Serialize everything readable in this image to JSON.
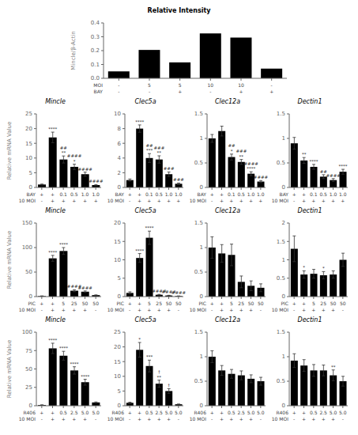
{
  "chart_data": [
    {
      "type": "bar",
      "title": "Relative Intensity",
      "ylabel": "Mincle/β-Actin",
      "category_rows": [
        {
          "name": "MOI",
          "labels": [
            "-",
            "5",
            "5",
            "10",
            "10",
            "-"
          ]
        },
        {
          "name": "BAY",
          "labels": [
            "-",
            "-",
            "+",
            "-",
            "+",
            "+"
          ]
        }
      ],
      "values": [
        0.05,
        0.205,
        0.115,
        0.325,
        0.295,
        0.07
      ],
      "ylim": [
        0,
        0.4
      ],
      "yticks": [
        {
          "value": 0,
          "label": "0.0"
        },
        0.1,
        0.2,
        0.3,
        0.4
      ]
    },
    {
      "type": "bar",
      "title": "Mincle",
      "ylabel": "Relative mRNA Value",
      "category_rows": [
        {
          "name": "BAY",
          "labels": [
            "+",
            "+",
            "0.1",
            "0.5",
            "1.0",
            "1.0"
          ]
        },
        {
          "name": "10 MOI",
          "labels": [
            "-",
            "+",
            "+",
            "+",
            "+",
            "+"
          ]
        }
      ],
      "values": [
        1.0,
        17.0,
        9.5,
        7.0,
        4.5,
        0.8
      ],
      "errors": [
        0.15,
        1.8,
        1.2,
        0.9,
        0.7,
        0.15
      ],
      "annotations": [
        null,
        [
          "****"
        ],
        [
          "##",
          "**"
        ],
        [
          "####",
          "*"
        ],
        [
          "####"
        ],
        [
          "####"
        ]
      ],
      "ylim": [
        0,
        25
      ],
      "yticks": [
        0,
        5,
        10,
        15,
        20,
        25
      ]
    },
    {
      "type": "bar",
      "title": "Clec5a",
      "category_rows": [
        {
          "name": "BAY",
          "labels": [
            "+",
            "+",
            "0.1",
            "0.5",
            "1.0",
            "1.0"
          ]
        },
        {
          "name": "10 MOI",
          "labels": [
            "-",
            "+",
            "+",
            "+",
            "+",
            "+"
          ]
        }
      ],
      "values": [
        1.0,
        8.0,
        4.0,
        3.8,
        1.8,
        0.5
      ],
      "errors": [
        0.15,
        0.5,
        0.6,
        0.5,
        0.3,
        0.1
      ],
      "annotations": [
        null,
        [
          "****"
        ],
        [
          "##",
          "***"
        ],
        [
          "###",
          "**"
        ],
        [
          "###"
        ],
        [
          "###"
        ]
      ],
      "ylim": [
        0,
        10
      ],
      "yticks": [
        0,
        2,
        4,
        6,
        8,
        10
      ]
    },
    {
      "type": "bar",
      "title": "Clec12a",
      "category_rows": [
        {
          "name": "BAY",
          "labels": [
            "+",
            "+",
            "0.1",
            "0.5",
            "1.0",
            "1.0"
          ]
        },
        {
          "name": "10 MOI",
          "labels": [
            "-",
            "+",
            "+",
            "+",
            "+",
            "+"
          ]
        }
      ],
      "values": [
        1.0,
        1.15,
        0.62,
        0.52,
        0.28,
        0.12
      ],
      "errors": [
        0.08,
        0.1,
        0.06,
        0.05,
        0.04,
        0.02
      ],
      "annotations": [
        null,
        null,
        [
          "##",
          "*"
        ],
        [
          "###",
          "**"
        ],
        [
          "####",
          "****"
        ],
        [
          "####"
        ]
      ],
      "ylim": [
        0,
        1.5
      ],
      "yticks": [
        0,
        0.5,
        1,
        1.5
      ]
    },
    {
      "type": "bar",
      "title": "Dectin1",
      "category_rows": [
        {
          "name": "BAY",
          "labels": [
            "+",
            "+",
            "0.1",
            "0.5",
            "1.0",
            "1.0"
          ]
        },
        {
          "name": "10 MOI",
          "labels": [
            "-",
            "+",
            "+",
            "+",
            "+",
            "+"
          ]
        }
      ],
      "values": [
        0.9,
        0.55,
        0.42,
        0.22,
        0.15,
        0.32
      ],
      "errors": [
        0.12,
        0.06,
        0.05,
        0.04,
        0.03,
        0.05
      ],
      "annotations": [
        null,
        [
          "**"
        ],
        [
          "****"
        ],
        [
          "##"
        ],
        [
          "####"
        ],
        [
          "****"
        ]
      ],
      "ylim": [
        0,
        1.5
      ],
      "yticks": [
        0,
        0.5,
        1,
        1.5
      ]
    },
    {
      "type": "bar",
      "title": "Mincle",
      "ylabel": "Relative mRNA Value",
      "category_rows": [
        {
          "name": "PIC",
          "labels": [
            "+",
            "+",
            "5",
            "25",
            "50",
            "50"
          ]
        },
        {
          "name": "10 MOI",
          "labels": [
            "-",
            "+",
            "+",
            "+",
            "+",
            "-"
          ]
        }
      ],
      "values": [
        1.0,
        78.0,
        93.0,
        12.0,
        10.0,
        3.0
      ],
      "errors": [
        0.5,
        6.0,
        7.0,
        2.0,
        1.5,
        0.5
      ],
      "annotations": [
        null,
        [
          "****"
        ],
        [
          "****"
        ],
        [
          "####"
        ],
        [
          "####"
        ],
        null
      ],
      "ylim": [
        0,
        150
      ],
      "yticks": [
        0,
        50,
        100,
        150
      ]
    },
    {
      "type": "bar",
      "title": "Clec5a",
      "category_rows": [
        {
          "name": "PIC",
          "labels": [
            "+",
            "+",
            "5",
            "25",
            "50",
            "50"
          ]
        },
        {
          "name": "10 MOI",
          "labels": [
            "-",
            "+",
            "+",
            "+",
            "+",
            "-"
          ]
        }
      ],
      "values": [
        1.0,
        10.5,
        16.0,
        0.5,
        0.3,
        0.15
      ],
      "errors": [
        0.3,
        1.2,
        1.8,
        0.1,
        0.05,
        0.03
      ],
      "annotations": [
        null,
        [
          "****"
        ],
        [
          "****"
        ],
        [
          "####"
        ],
        [
          "####"
        ],
        [
          "####"
        ]
      ],
      "ylim": [
        0,
        20
      ],
      "yticks": [
        0,
        5,
        10,
        15,
        20
      ]
    },
    {
      "type": "bar",
      "title": "Clec12a",
      "category_rows": [
        {
          "name": "PIC",
          "labels": [
            "+",
            "+",
            "5",
            "25",
            "50",
            "50"
          ]
        },
        {
          "name": "10 MOI",
          "labels": [
            "-",
            "+",
            "+",
            "+",
            "+",
            "-"
          ]
        }
      ],
      "values": [
        1.0,
        0.88,
        0.85,
        0.3,
        0.22,
        0.18
      ],
      "errors": [
        0.22,
        0.18,
        0.22,
        0.12,
        0.1,
        0.08
      ],
      "ylim": [
        0,
        1.5
      ],
      "yticks": [
        0,
        0.5,
        1,
        1.5
      ]
    },
    {
      "type": "bar",
      "title": "Dectin1",
      "category_rows": [
        {
          "name": "PIC",
          "labels": [
            "+",
            "+",
            "5",
            "25",
            "50",
            "50"
          ]
        },
        {
          "name": "10 MOI",
          "labels": [
            "-",
            "+",
            "+",
            "+",
            "+",
            "-"
          ]
        }
      ],
      "values": [
        1.3,
        0.6,
        0.62,
        0.58,
        0.6,
        1.0
      ],
      "errors": [
        0.35,
        0.1,
        0.12,
        0.1,
        0.1,
        0.18
      ],
      "annotations": [
        null,
        [
          "*"
        ],
        null,
        [
          "*"
        ],
        null,
        null
      ],
      "ylim": [
        0,
        2
      ],
      "yticks": [
        0,
        0.5,
        1,
        1.5,
        2
      ]
    },
    {
      "type": "bar",
      "title": "Mincle",
      "ylabel": "Relative mRNA Value",
      "category_rows": [
        {
          "name": "R406",
          "labels": [
            "+",
            "+",
            "0.5",
            "2.5",
            "5.0",
            "5.0"
          ]
        },
        {
          "name": "10 MOI",
          "labels": [
            "-",
            "+",
            "+",
            "+",
            "+",
            "-"
          ]
        }
      ],
      "values": [
        1.0,
        78.0,
        68.0,
        48.0,
        32.0,
        4.5
      ],
      "errors": [
        0.2,
        7.0,
        6.0,
        5.0,
        4.0,
        0.6
      ],
      "annotations": [
        null,
        [
          "****"
        ],
        [
          "****"
        ],
        [
          "****"
        ],
        [
          "****"
        ],
        null
      ],
      "ylim": [
        0,
        100
      ],
      "yticks": [
        0,
        25,
        50,
        75,
        100
      ]
    },
    {
      "type": "bar",
      "title": "Clec5a",
      "category_rows": [
        {
          "name": "R406",
          "labels": [
            "+",
            "+",
            "0.5",
            "2.5",
            "5.0",
            "5.0"
          ]
        },
        {
          "name": "10 MOI",
          "labels": [
            "-",
            "+",
            "+",
            "+",
            "+",
            "-"
          ]
        }
      ],
      "values": [
        1.0,
        19.0,
        13.5,
        7.5,
        5.0,
        0.5
      ],
      "errors": [
        0.2,
        2.5,
        2.0,
        1.2,
        0.8,
        0.1
      ],
      "annotations": [
        null,
        [
          "*"
        ],
        [
          "***"
        ],
        [
          "†",
          "**"
        ],
        [
          "†"
        ],
        null
      ],
      "ylim": [
        0,
        25
      ],
      "yticks": [
        0,
        5,
        10,
        15,
        20,
        25
      ]
    },
    {
      "type": "bar",
      "title": "Clec12a",
      "category_rows": [
        {
          "name": "R406",
          "labels": [
            "+",
            "+",
            "0.5",
            "2.5",
            "5.0",
            "5.0"
          ]
        },
        {
          "name": "10 MOI",
          "labels": [
            "-",
            "+",
            "+",
            "+",
            "+",
            "-"
          ]
        }
      ],
      "values": [
        1.0,
        0.72,
        0.65,
        0.62,
        0.55,
        0.5
      ],
      "errors": [
        0.12,
        0.1,
        0.09,
        0.09,
        0.08,
        0.08
      ],
      "ylim": [
        0,
        1.5
      ],
      "yticks": [
        0,
        0.5,
        1,
        1.5
      ]
    },
    {
      "type": "bar",
      "title": "Dectin1",
      "category_rows": [
        {
          "name": "R406",
          "labels": [
            "+",
            "+",
            "0.5",
            "2.5",
            "5.0",
            "5.0"
          ]
        },
        {
          "name": "10 MOI",
          "labels": [
            "-",
            "+",
            "+",
            "+",
            "+",
            "-"
          ]
        }
      ],
      "values": [
        0.92,
        0.82,
        0.72,
        0.72,
        0.62,
        0.5
      ],
      "errors": [
        0.14,
        0.12,
        0.12,
        0.11,
        0.11,
        0.1
      ],
      "annotations": [
        null,
        null,
        null,
        null,
        [
          "**"
        ],
        null
      ],
      "ylim": [
        0,
        1.5
      ],
      "yticks": [
        0,
        0.5,
        1,
        1.5
      ]
    }
  ]
}
